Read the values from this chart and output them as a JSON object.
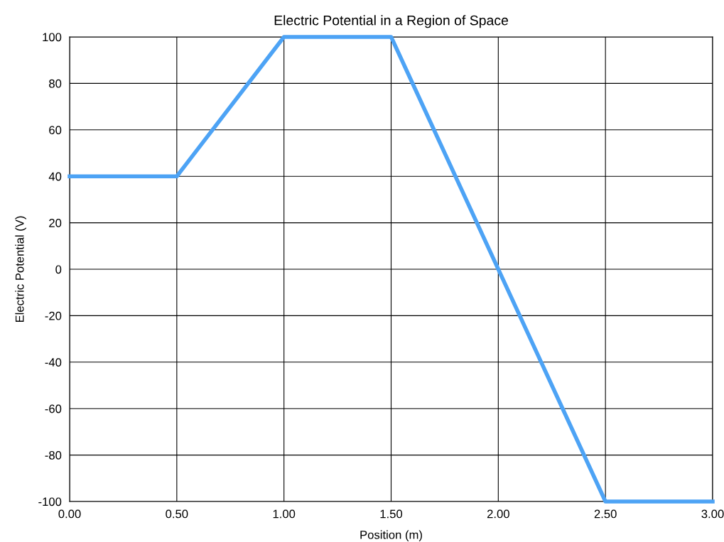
{
  "chart_data": {
    "type": "line",
    "title": "Electric Potential in a Region of Space",
    "xlabel": "Position (m)",
    "ylabel": "Electric Potential (V)",
    "x": [
      0,
      0.5,
      1.0,
      1.5,
      2.5,
      3.0
    ],
    "series": [
      {
        "color": "#4da3f5",
        "values": [
          40,
          40,
          100,
          100,
          -100,
          -100
        ]
      }
    ],
    "xlim": [
      0,
      3
    ],
    "ylim": [
      -100,
      100
    ],
    "xticks": [
      {
        "value": 0,
        "label": "0.00"
      },
      {
        "value": 0.5,
        "label": "0.50"
      },
      {
        "value": 1.0,
        "label": "1.00"
      },
      {
        "value": 1.5,
        "label": "1.50"
      },
      {
        "value": 2.0,
        "label": "2.00"
      },
      {
        "value": 2.5,
        "label": "2.50"
      },
      {
        "value": 3.0,
        "label": "3.00"
      }
    ],
    "yticks": [
      -100,
      -80,
      -60,
      -40,
      -20,
      0,
      20,
      40,
      60,
      80,
      100
    ],
    "grid": true,
    "marker": "none",
    "line_style": "solid"
  }
}
